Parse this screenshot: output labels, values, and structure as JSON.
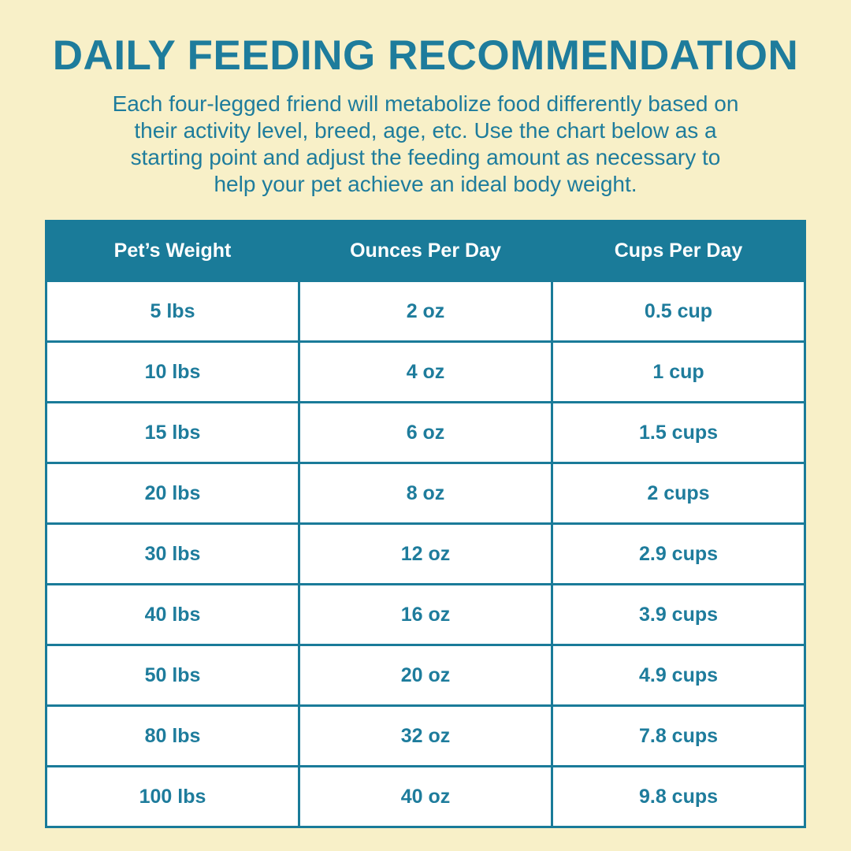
{
  "page": {
    "title": "DAILY FEEDING RECOMMENDATION",
    "subtitle_lines": [
      "Each four-legged friend will metabolize food differently based on",
      "their activity level, breed, age, etc. Use the chart below as a",
      "starting point and adjust the feeding amount as necessary to",
      "help your pet achieve an ideal body weight."
    ]
  },
  "table": {
    "headers": [
      "Pet’s Weight",
      "Ounces Per Day",
      "Cups Per Day"
    ],
    "rows": [
      [
        "5 lbs",
        "2 oz",
        "0.5 cup"
      ],
      [
        "10 lbs",
        "4 oz",
        "1 cup"
      ],
      [
        "15 lbs",
        "6 oz",
        "1.5 cups"
      ],
      [
        "20 lbs",
        "8 oz",
        "2 cups"
      ],
      [
        "30 lbs",
        "12 oz",
        "2.9 cups"
      ],
      [
        "40 lbs",
        "16 oz",
        "3.9 cups"
      ],
      [
        "50 lbs",
        "20 oz",
        "4.9 cups"
      ],
      [
        "80 lbs",
        "32 oz",
        "7.8 cups"
      ],
      [
        "100 lbs",
        "40 oz",
        "9.8 cups"
      ]
    ]
  },
  "colors": {
    "background": "#F8F0C8",
    "teal_text": "#1E7C9C",
    "header_background": "#1A7B99",
    "header_text": "#FFFFFF",
    "cell_background": "#FFFFFF",
    "border": "#1A7B99"
  },
  "chart_data": {
    "type": "table",
    "title": "DAILY FEEDING RECOMMENDATION",
    "columns": [
      "Pet’s Weight",
      "Ounces Per Day",
      "Cups Per Day"
    ],
    "pet_weight_lbs": [
      5,
      10,
      15,
      20,
      30,
      40,
      50,
      80,
      100
    ],
    "ounces_per_day": [
      2,
      4,
      6,
      8,
      12,
      16,
      20,
      32,
      40
    ],
    "cups_per_day": [
      0.5,
      1,
      1.5,
      2,
      2.9,
      3.9,
      4.9,
      7.8,
      9.8
    ]
  }
}
